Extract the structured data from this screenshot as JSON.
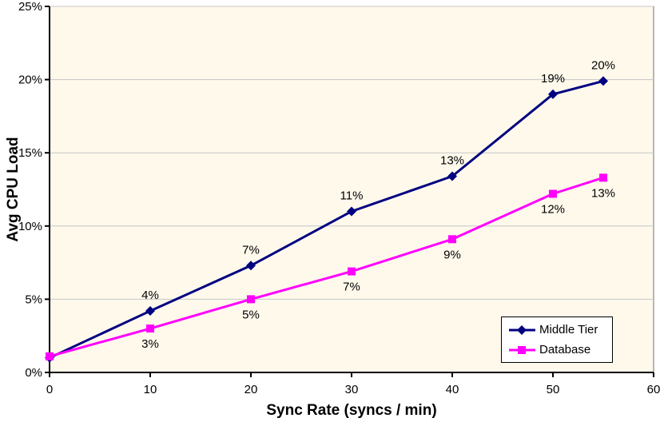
{
  "chart_data": {
    "type": "line",
    "title": "",
    "xlabel": "Sync Rate (syncs / min)",
    "ylabel": "Avg CPU Load",
    "xlim": [
      0,
      60
    ],
    "ylim": [
      0,
      25
    ],
    "x_ticks": [
      0,
      10,
      20,
      30,
      40,
      50,
      60
    ],
    "x_tick_labels": [
      "0",
      "10",
      "20",
      "30",
      "40",
      "50",
      "60"
    ],
    "y_ticks": [
      0,
      5,
      10,
      15,
      20,
      25
    ],
    "y_tick_labels": [
      "0%",
      "5%",
      "10%",
      "15%",
      "20%",
      "25%"
    ],
    "grid": "horizontal-only",
    "legend_position": "bottom-right-inside",
    "x": [
      0,
      10,
      20,
      30,
      40,
      50,
      55
    ],
    "series": [
      {
        "name": "Middle Tier",
        "color": "#000080",
        "marker": "diamond",
        "values": [
          1.0,
          4.2,
          7.3,
          11.0,
          13.4,
          19.0,
          19.9
        ],
        "labels": [
          "",
          "4%",
          "7%",
          "11%",
          "13%",
          "19%",
          "20%"
        ],
        "label_position": "above"
      },
      {
        "name": "Database",
        "color": "#FF00FF",
        "marker": "square",
        "values": [
          1.1,
          3.0,
          5.0,
          6.9,
          9.1,
          12.2,
          13.3
        ],
        "labels": [
          "",
          "3%",
          "5%",
          "7%",
          "9%",
          "12%",
          "13%"
        ],
        "label_position": "below"
      }
    ],
    "colors": {
      "plot_bg": "#FFF9EC",
      "gridline": "#C6C6C6",
      "plot_border": "#707070",
      "axis": "#000000",
      "label_text": "#000000"
    }
  }
}
